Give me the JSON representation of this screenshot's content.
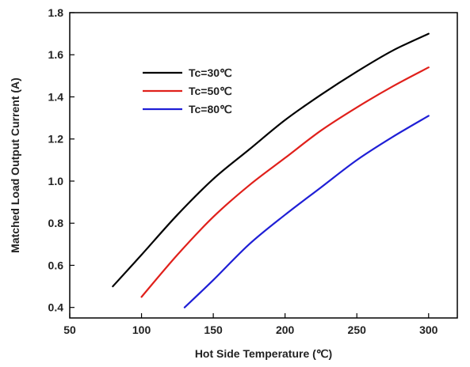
{
  "chart_data": {
    "type": "line",
    "title": "",
    "xlabel": "Hot Side Temperature (℃)",
    "ylabel": "Matched Load Output Current (A)",
    "xlim": [
      50,
      320
    ],
    "ylim": [
      0.35,
      1.8
    ],
    "xticks": [
      50,
      100,
      150,
      200,
      250,
      300
    ],
    "yticks": [
      0.4,
      0.6,
      0.8,
      1.0,
      1.2,
      1.4,
      1.6,
      1.8
    ],
    "xtick_labels": [
      "50",
      "100",
      "150",
      "200",
      "250",
      "300"
    ],
    "ytick_labels": [
      "0.4",
      "0.6",
      "0.8",
      "1.0",
      "1.2",
      "1.4",
      "1.6",
      "1.8"
    ],
    "grid": false,
    "legend": "top-left",
    "series": [
      {
        "name": "Tc=30℃",
        "color": "#000000",
        "x": [
          80,
          100,
          125,
          150,
          175,
          200,
          225,
          250,
          275,
          300
        ],
        "y": [
          0.5,
          0.65,
          0.84,
          1.01,
          1.15,
          1.29,
          1.41,
          1.52,
          1.62,
          1.7
        ]
      },
      {
        "name": "Tc=50℃",
        "color": "#e0201b",
        "x": [
          100,
          125,
          150,
          175,
          200,
          225,
          250,
          275,
          300
        ],
        "y": [
          0.45,
          0.65,
          0.83,
          0.98,
          1.11,
          1.24,
          1.35,
          1.45,
          1.54
        ]
      },
      {
        "name": "Tc=80℃",
        "color": "#1f1fd6",
        "x": [
          130,
          150,
          175,
          200,
          225,
          250,
          275,
          300
        ],
        "y": [
          0.4,
          0.53,
          0.7,
          0.84,
          0.97,
          1.1,
          1.21,
          1.31
        ]
      }
    ]
  }
}
